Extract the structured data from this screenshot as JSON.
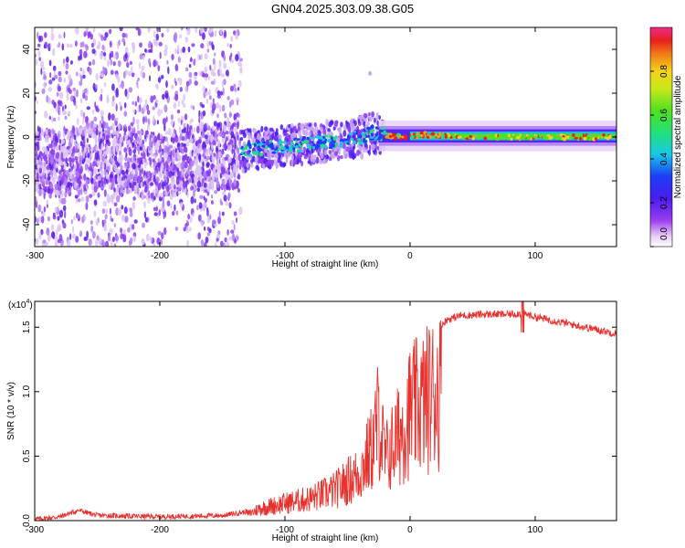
{
  "title": "GN04.2025.303.09.38.G05",
  "chart_data": [
    {
      "type": "heatmap",
      "xlabel": "Height of straight line (km)",
      "ylabel": "Frequency (Hz)",
      "xlim": [
        -300,
        165
      ],
      "ylim": [
        -50,
        50
      ],
      "xticks": [
        -300,
        -200,
        -100,
        0,
        100
      ],
      "yticks": [
        40,
        20,
        0,
        -20,
        -40
      ],
      "ridge": {
        "x": [
          -300,
          -280,
          -250,
          -200,
          -180,
          -150,
          -130,
          -100,
          -80,
          -60,
          -40,
          -30,
          -20,
          -10,
          0,
          10,
          50,
          100,
          165
        ],
        "freq": [
          -11,
          -13,
          -8,
          -14,
          -10,
          -9,
          -6,
          -4,
          -3,
          -2,
          0,
          2,
          1,
          0,
          0,
          1,
          0,
          0,
          0
        ]
      },
      "colorbar": {
        "label": "Normalized spectral amplitude",
        "ticks": [
          0.0,
          0.2,
          0.4,
          0.6,
          0.8
        ],
        "tick_labels": [
          "0.0",
          "0.2",
          "0.4",
          "0.6",
          "0.8"
        ],
        "range": [
          0,
          1
        ]
      }
    },
    {
      "type": "line",
      "xlabel": "Height of straight line (km)",
      "ylabel": "SNR (10 * v/v)",
      "scale_label": "(x10",
      "scale_exp": "4",
      "xlim": [
        -300,
        165
      ],
      "ylim": [
        0,
        1.7
      ],
      "xticks": [
        -300,
        -200,
        -100,
        0,
        100
      ],
      "yticks": [
        0.0,
        0.5,
        1.0,
        1.5
      ],
      "ytick_labels": [
        "0.0",
        "0.5",
        "1.0",
        "1.5"
      ],
      "envelope": {
        "x": [
          -300,
          -280,
          -265,
          -250,
          -200,
          -150,
          -130,
          -120,
          -100,
          -80,
          -60,
          -40,
          -30,
          -25,
          -20,
          -10,
          0,
          10,
          20,
          30,
          40,
          60,
          80,
          90,
          100,
          120,
          140,
          165
        ],
        "y": [
          0.01,
          0.03,
          0.08,
          0.04,
          0.03,
          0.04,
          0.07,
          0.14,
          0.2,
          0.25,
          0.35,
          0.55,
          0.85,
          1.2,
          0.7,
          0.95,
          1.25,
          1.35,
          1.48,
          1.56,
          1.59,
          1.6,
          1.6,
          1.61,
          1.58,
          1.54,
          1.5,
          1.45
        ]
      },
      "color": "#e8302c"
    }
  ]
}
